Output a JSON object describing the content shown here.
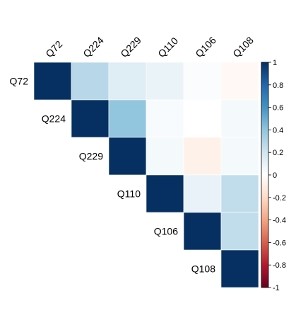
{
  "chart_data": {
    "type": "heatmap",
    "variables": [
      "Q72",
      "Q224",
      "Q229",
      "Q110",
      "Q106",
      "Q108"
    ],
    "matrix": [
      [
        1.0,
        0.28,
        0.14,
        0.09,
        0.02,
        -0.04
      ],
      [
        0.28,
        1.0,
        0.4,
        0.03,
        0.0,
        0.05
      ],
      [
        0.14,
        0.4,
        1.0,
        0.05,
        -0.08,
        0.05
      ],
      [
        0.09,
        0.03,
        0.05,
        1.0,
        0.1,
        0.25
      ],
      [
        0.02,
        0.0,
        -0.08,
        0.1,
        1.0,
        0.25
      ],
      [
        -0.04,
        0.05,
        0.05,
        0.25,
        0.25,
        1.0
      ]
    ],
    "show": "upper",
    "colorbar": {
      "range": [
        -1,
        1
      ],
      "ticks": [
        "1",
        "0.8",
        "0.6",
        "0.4",
        "0.2",
        "0",
        "-0.2",
        "-0.4",
        "-0.6",
        "-0.8",
        "-1"
      ],
      "colors": [
        "#67001F",
        "#B2182B",
        "#D6604D",
        "#F4A582",
        "#FDDBC7",
        "#FFFFFF",
        "#D1E5F0",
        "#92C5DE",
        "#4393C3",
        "#2166AC",
        "#053061"
      ]
    },
    "title": "",
    "xlabel": "",
    "ylabel": ""
  }
}
